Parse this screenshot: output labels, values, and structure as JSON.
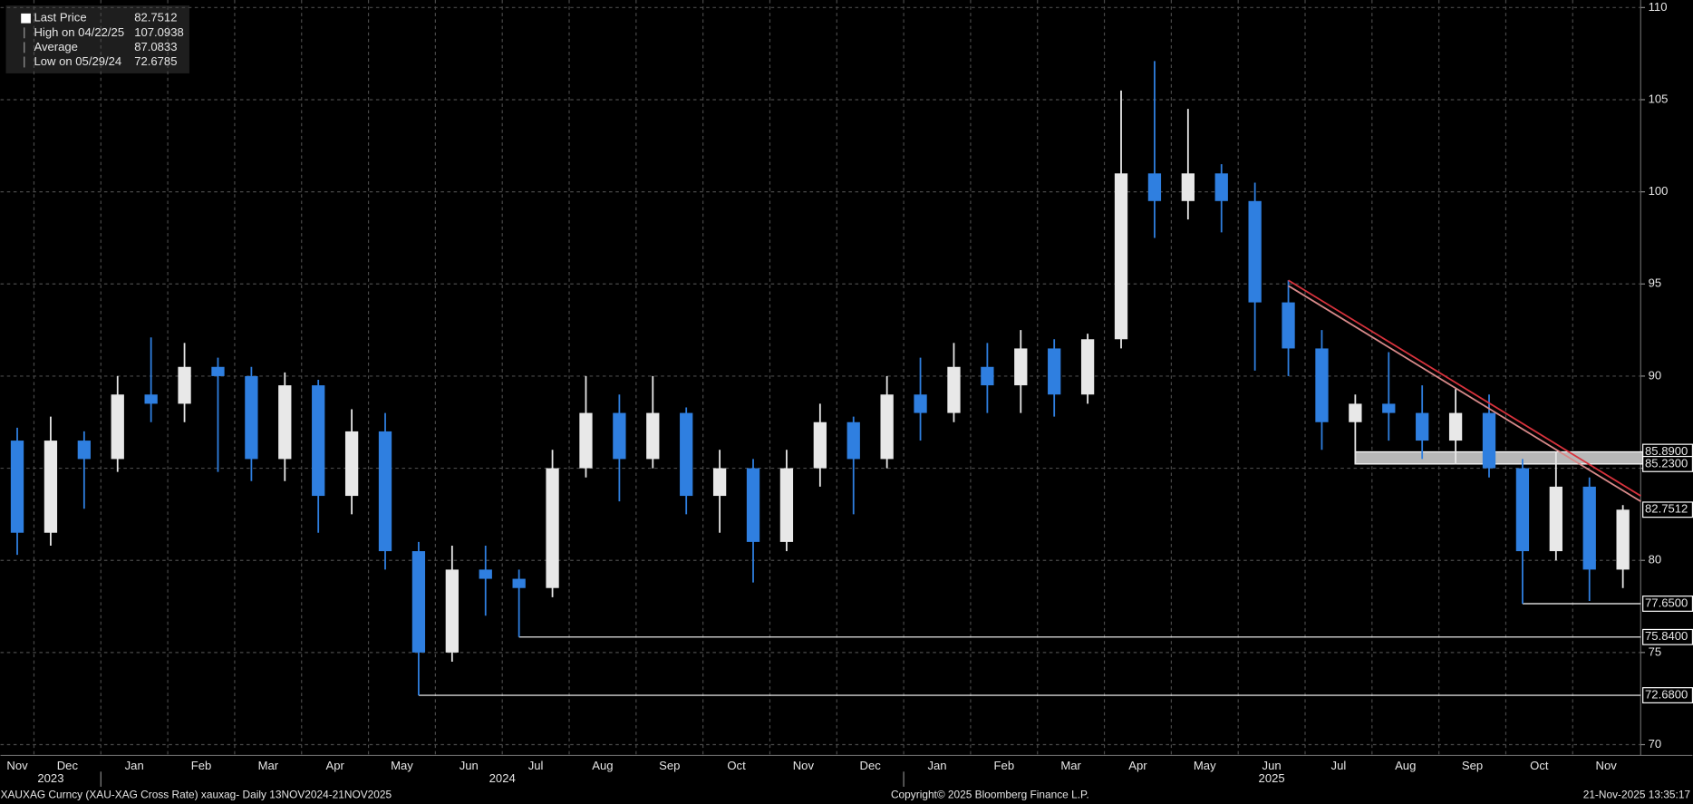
{
  "chart_data": {
    "type": "candlestick",
    "legend": [
      {
        "label": "Last Price",
        "value": 82.7512
      },
      {
        "label": "High on 04/22/25",
        "value": 107.0938
      },
      {
        "label": "Average",
        "value": 87.0833
      },
      {
        "label": "Low on 05/29/24",
        "value": 72.6785
      }
    ],
    "categories": [
      "Nov",
      "Dec",
      null,
      "Jan",
      null,
      "Feb",
      null,
      "Mar",
      null,
      "Apr",
      null,
      "May",
      null,
      "Jun",
      null,
      "Jul",
      null,
      "Aug",
      null,
      "Sep",
      null,
      "Oct",
      null,
      "Nov",
      null,
      "Dec",
      null,
      "Jan",
      null,
      "Feb",
      null,
      "Mar",
      null,
      "Apr",
      null,
      "May",
      null,
      "Jun",
      null,
      "Jul",
      null,
      "Aug",
      null,
      "Sep",
      null,
      "Oct",
      null,
      "Nov",
      null
    ],
    "year_labels": [
      "2023",
      null,
      null,
      "2024",
      null,
      null,
      null,
      null,
      null,
      null,
      null,
      null,
      null,
      null,
      null,
      null,
      null,
      null,
      null,
      null,
      null,
      null,
      null,
      null,
      null,
      null,
      null,
      "2025",
      null,
      null,
      null,
      null,
      null,
      null,
      null,
      null,
      null,
      null,
      null,
      null,
      null,
      null,
      null,
      null,
      null,
      null,
      null,
      null,
      null
    ],
    "open": [
      86.5,
      81.5,
      86.5,
      85.5,
      89,
      88.5,
      90.5,
      90,
      85.5,
      89.5,
      83.5,
      87,
      80.5,
      75,
      79.5,
      79,
      78.5,
      85,
      88,
      85.5,
      88,
      83.5,
      85,
      81,
      85,
      87.5,
      85.5,
      89,
      88,
      90.5,
      89.5,
      91.5,
      89,
      92,
      101,
      99.5,
      101,
      99.5,
      94,
      91.5,
      87.5,
      88.5,
      88,
      86.5,
      88,
      85,
      80.5,
      84,
      79.5
    ],
    "high": [
      87.2,
      87.8,
      87,
      90,
      92.1,
      91.8,
      91,
      90.5,
      90.2,
      89.8,
      88.2,
      88,
      81,
      80.8,
      80.8,
      79.5,
      86,
      90,
      89,
      90,
      88.3,
      86,
      85.5,
      86,
      88.5,
      87.8,
      90,
      91,
      91.8,
      91.8,
      92.5,
      92,
      92.3,
      105.5,
      107.0938,
      104.5,
      101.5,
      100.5,
      95.2,
      92.5,
      89,
      91.3,
      89.5,
      89.3,
      89,
      85.5,
      85.9,
      84.5,
      83
    ],
    "low": [
      80.3,
      80.8,
      82.8,
      84.8,
      87.5,
      87.5,
      84.8,
      84.3,
      84.3,
      81.5,
      82.5,
      79.5,
      72.6785,
      74.5,
      77,
      75.84,
      78,
      84.5,
      83.2,
      85,
      82.5,
      81.5,
      78.8,
      80.5,
      84,
      82.5,
      85,
      86.5,
      87.5,
      88,
      88,
      87.8,
      88.5,
      91.5,
      97.5,
      98.5,
      97.8,
      90.3,
      90,
      86,
      85.2,
      86.5,
      85.5,
      85.2,
      84.5,
      77.65,
      80,
      77.8,
      78.5
    ],
    "close": [
      81.5,
      86.5,
      85.5,
      89,
      88.5,
      90.5,
      90,
      85.5,
      89.5,
      83.5,
      87,
      80.5,
      75,
      79.5,
      79,
      78.5,
      85,
      88,
      85.5,
      88,
      83.5,
      85,
      81,
      85,
      87.5,
      85.5,
      89,
      88,
      90.5,
      89.5,
      91.5,
      89,
      92,
      101,
      99.5,
      101,
      99.5,
      94,
      91.5,
      87.5,
      88.5,
      88,
      86.5,
      88,
      85,
      80.5,
      84,
      79.5,
      82.7512
    ],
    "up_color": "#e8e8e8",
    "down_color": "#2f7fe0",
    "ylim": [
      70,
      110
    ],
    "yticks": [
      70,
      75,
      80,
      85,
      90,
      95,
      100,
      105,
      110
    ],
    "grid": true,
    "levels": [
      {
        "value": 77.65,
        "label": "77.6500"
      },
      {
        "value": 75.84,
        "label": "75.8400"
      },
      {
        "value": 72.68,
        "label": "72.6800"
      }
    ],
    "zone": {
      "high": {
        "value": 85.89,
        "label": "85.8900"
      },
      "low": {
        "value": 85.23,
        "label": "85.2300"
      },
      "color": "#b8b8b8"
    },
    "trendlines": [
      {
        "values": [
          95.2,
          83.5
        ],
        "color": "#d8323c"
      },
      {
        "values": [
          94.9,
          83.2
        ],
        "color": "#d88a8a"
      }
    ],
    "footer": {
      "left": "XAUXAG Curncy (XAU-XAG Cross Rate) xauxag- Daily 13NOV2024-21NOV2025",
      "center": "Copyright© 2025 Bloomberg Finance L.P.",
      "right": "21-Nov-2025 13:35:17"
    }
  }
}
